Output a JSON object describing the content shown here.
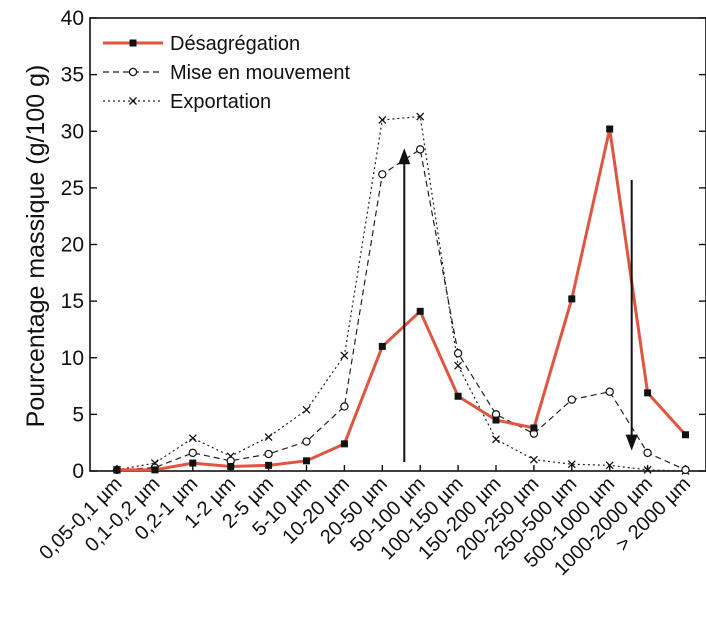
{
  "chart_data": {
    "type": "line",
    "title": "",
    "xlabel": "",
    "ylabel": "Pourcentage massique (g/100 g)",
    "ylim": [
      0,
      40
    ],
    "yticks": [
      "0",
      "5",
      "10",
      "15",
      "20",
      "25",
      "30",
      "35",
      "40"
    ],
    "grid": false,
    "legend_position": "top-left",
    "categories": [
      "0,05-0,1 µm",
      "0,1-0,2 µm",
      "0,2-1 µm",
      "1-2 µm",
      "2-5 µm",
      "5-10 µm",
      "10-20 µm",
      "20-50 µm",
      "50-100 µm",
      "100-150 µm",
      "150-200 µm",
      "200-250 µm",
      "250-500 µm",
      "500-1000 µm",
      "1000-2000 µm",
      "> 2000 µm"
    ],
    "series": [
      {
        "name": "Désagrégation",
        "color": "#e05540",
        "marker": "square",
        "line": "solid",
        "values": [
          0.1,
          0.1,
          0.7,
          0.4,
          0.5,
          0.9,
          2.4,
          11.0,
          14.1,
          6.6,
          4.5,
          3.8,
          15.2,
          30.2,
          6.9,
          3.2
        ]
      },
      {
        "name": "Mise en mouvement",
        "color": "#222222",
        "marker": "circle",
        "line": "dashed",
        "values": [
          0.1,
          0.3,
          1.6,
          0.9,
          1.5,
          2.6,
          5.7,
          26.2,
          28.4,
          10.4,
          5.0,
          3.3,
          6.3,
          7.0,
          1.6,
          0.1
        ]
      },
      {
        "name": "Exportation",
        "color": "#222222",
        "marker": "cross",
        "line": "dotted",
        "values": [
          0.1,
          0.7,
          2.9,
          1.3,
          3.0,
          5.4,
          10.2,
          31.0,
          31.3,
          9.3,
          2.8,
          1.0,
          0.6,
          0.5,
          0.1,
          0.0
        ]
      }
    ],
    "annotations": [
      {
        "type": "arrow",
        "direction": "up",
        "category": "20-50 µm",
        "from": 0.8,
        "to": 28.5
      },
      {
        "type": "arrow",
        "direction": "down",
        "category": "500-1000 µm",
        "from": 25.7,
        "to": 1.8
      }
    ]
  }
}
